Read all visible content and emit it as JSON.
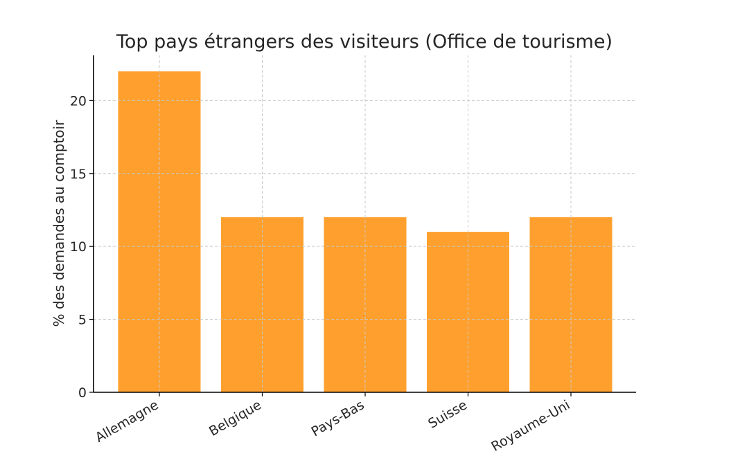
{
  "chart_data": {
    "type": "bar",
    "title": "Top pays étrangers des visiteurs (Office de tourisme)",
    "xlabel": "",
    "ylabel": "% des demandes au comptoir",
    "categories": [
      "Allemagne",
      "Belgique",
      "Pays-Bas",
      "Suisse",
      "Royaume-Uni"
    ],
    "values": [
      22,
      12,
      12,
      11,
      12
    ],
    "ylim": [
      0,
      23.1
    ],
    "yticks": [
      0,
      5,
      10,
      15,
      20
    ],
    "bar_color": "#ffa02e",
    "grid": true,
    "legend": "none"
  }
}
